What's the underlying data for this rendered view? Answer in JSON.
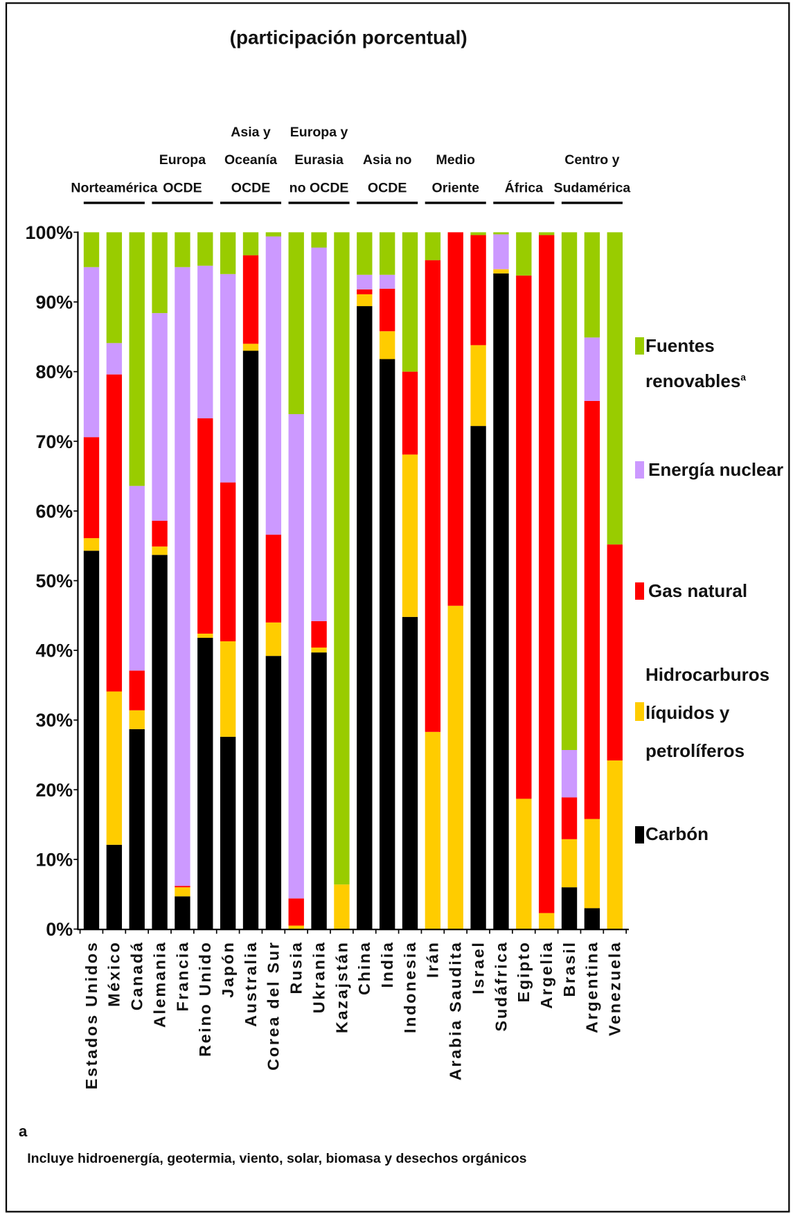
{
  "chart_data": {
    "type": "bar",
    "stacked": true,
    "title": "(participación porcentual)",
    "ylim": [
      0,
      100
    ],
    "y_ticks": [
      "0%",
      "10%",
      "20%",
      "30%",
      "40%",
      "50%",
      "60%",
      "70%",
      "80%",
      "90%",
      "100%"
    ],
    "grid": false,
    "legend_position": "right",
    "groups": [
      {
        "label_lines": [
          "Norteamérica"
        ],
        "categories": [
          "Estados Unidos",
          "México",
          "Canadá"
        ]
      },
      {
        "label_lines": [
          "Europa",
          "OCDE"
        ],
        "categories": [
          "Alemania",
          "Francia",
          "Reino Unido"
        ]
      },
      {
        "label_lines": [
          "Asia y",
          "Oceanía",
          "OCDE"
        ],
        "categories": [
          "Japón",
          "Australia",
          "Corea del Sur"
        ]
      },
      {
        "label_lines": [
          "Europa y",
          "Eurasia",
          "no OCDE"
        ],
        "categories": [
          "Rusia",
          "Ukrania",
          "Kazajstán"
        ]
      },
      {
        "label_lines": [
          "Asia no",
          "OCDE"
        ],
        "categories": [
          "China",
          "India",
          "Indonesia"
        ]
      },
      {
        "label_lines": [
          "Medio",
          "Oriente"
        ],
        "categories": [
          "Irán",
          "Arabia Saudita",
          "Israel"
        ]
      },
      {
        "label_lines": [
          "África"
        ],
        "categories": [
          "Sudáfrica",
          "Egipto",
          "Argelia"
        ]
      },
      {
        "label_lines": [
          "Centro y",
          "Sudamérica"
        ],
        "categories": [
          "Brasil",
          "Argentina",
          "Venezuela"
        ]
      }
    ],
    "series": [
      {
        "name": "Carbón",
        "color": "#000000",
        "values": [
          54.3,
          12.1,
          28.7,
          53.7,
          4.7,
          41.8,
          27.6,
          83.0,
          39.2,
          0,
          39.7,
          0,
          89.4,
          81.8,
          44.8,
          0,
          0,
          72.2,
          94.1,
          0,
          0,
          6.0,
          3.0,
          0
        ]
      },
      {
        "name": "Hidrocarburos líquidos y petrolíferos",
        "color": "#ffcc00",
        "values": [
          1.8,
          22.0,
          2.7,
          1.2,
          1.3,
          0.6,
          13.7,
          1.0,
          4.8,
          0.5,
          0.7,
          6.4,
          1.7,
          4.0,
          23.3,
          28.3,
          46.4,
          11.6,
          0.6,
          18.7,
          2.3,
          6.9,
          12.8,
          24.2
        ]
      },
      {
        "name": "Gas natural",
        "color": "#ff0000",
        "values": [
          14.5,
          45.5,
          5.7,
          3.7,
          0.2,
          30.9,
          22.8,
          12.7,
          12.6,
          3.9,
          3.8,
          0,
          0.7,
          6.1,
          11.9,
          67.7,
          53.6,
          15.8,
          0,
          75.1,
          97.3,
          6.0,
          60.0,
          31.0
        ]
      },
      {
        "name": "Energía nuclear",
        "color": "#cc99ff",
        "values": [
          24.4,
          4.5,
          26.5,
          29.8,
          88.8,
          21.9,
          29.9,
          0,
          42.8,
          69.5,
          53.6,
          0,
          2.1,
          2.0,
          0,
          0,
          0,
          0,
          5.0,
          0,
          0,
          6.8,
          9.1,
          0
        ]
      },
      {
        "name": "Fuentes renovables",
        "color": "#99cc00",
        "values": [
          5.0,
          15.9,
          36.4,
          11.6,
          5.0,
          4.8,
          6.0,
          3.3,
          0.6,
          26.1,
          2.2,
          93.6,
          6.1,
          6.1,
          20.0,
          4.0,
          0,
          0.4,
          0.3,
          6.2,
          0.4,
          74.3,
          15.1,
          44.8
        ]
      }
    ]
  },
  "footnote": {
    "marker": "a",
    "text": "Incluye hidroenergía, geotermia, viento, solar, biomasa y desechos orgánicos"
  }
}
